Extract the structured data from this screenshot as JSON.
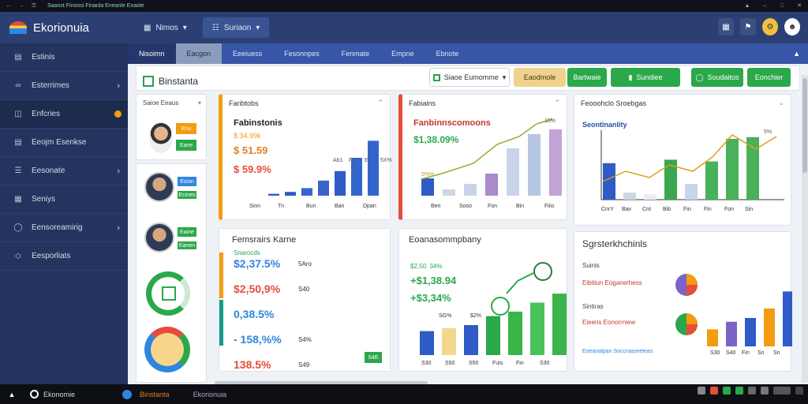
{
  "titlebar": {
    "caption": "Saanst Finonsi Finanla Eneanle Enaste"
  },
  "app": {
    "name": "Ekorionuia"
  },
  "header": {
    "btn1": "Nimos",
    "btn2": "Suriaon"
  },
  "sidebar": {
    "items": [
      {
        "label": "Estinis",
        "icon": "chart-icon"
      },
      {
        "label": "Esterrimes",
        "icon": "link-icon"
      },
      {
        "label": "Enfcries",
        "icon": "calendar-icon"
      },
      {
        "label": "Eeojm Esenkse",
        "icon": "book-icon"
      },
      {
        "label": "Eesonate",
        "icon": "list-icon"
      },
      {
        "label": "Seniys",
        "icon": "doc-icon"
      },
      {
        "label": "Eensoreamirig",
        "icon": "circle-icon"
      },
      {
        "label": "Eesporliats",
        "icon": "diamond-icon"
      }
    ]
  },
  "nav": {
    "tabs": [
      "Nisoimn",
      "Eacgon",
      "Eeeiuess",
      "Fesonnpes",
      "Fenmate",
      "Empne",
      "Ebnote"
    ]
  },
  "toolbar": {
    "title": "Binstanta",
    "select": "Siaoe Eumomme",
    "btns": [
      "Eaodmole",
      "Bartwaie",
      "Sundiee",
      "Soudaitos",
      "Eonchier"
    ]
  },
  "left": {
    "header": "Saioe Eeaus",
    "people": [
      "Esion",
      "Eaine",
      "Ecines",
      "Eanen"
    ],
    "badges": [
      "Enu",
      "Eane"
    ]
  },
  "card1": {
    "title": "Faribtobs",
    "heading": "Fabinstonis",
    "v1": "$ 34.99k",
    "v2": "$ 51.59",
    "v3": "$ 59.9%",
    "bars": [
      2,
      4,
      8,
      16,
      26,
      40,
      58
    ],
    "labels": [
      "Sinn",
      "Tn",
      "Bun",
      "Ban",
      "Dpan"
    ],
    "tick": [
      "Ab1",
      "F4",
      "Ent",
      "5X%"
    ]
  },
  "card2": {
    "title": "Fabiains",
    "heading": "Fanbinnscomoons",
    "value": "$1,38.09%",
    "v2": "5%%",
    "bars": [
      22,
      8,
      15,
      28,
      60,
      78,
      84
    ],
    "labels": [
      "Ben",
      "Soso",
      "Fon",
      "Bin",
      "Fiiis"
    ],
    "tick": "15%"
  },
  "card3": {
    "title": "Feooohclo Sroebgas",
    "heading": "Seontinanlity",
    "tick": "5%",
    "bars": [
      42,
      8,
      6,
      46,
      18,
      44,
      70,
      72
    ],
    "labels": [
      "CnrY",
      "Bav",
      "Cnt",
      "Bib",
      "Fin",
      "Fin",
      "Fon",
      "Sin"
    ]
  },
  "card4": {
    "title": "Femsrairs Karne",
    "rows": [
      {
        "pre": "Snarocds",
        "v": "$2,37.5%",
        "col": "#2e86de",
        "r": "5Aro"
      },
      {
        "pre": "",
        "v": "$2,50,9%",
        "col": "#e74c3c",
        "r": "S40"
      },
      {
        "pre": "",
        "v": "0,38.5%",
        "col": "#2e86de",
        "r": ""
      },
      {
        "pre": "",
        "v": "- 158,%%",
        "col": "#2e86de",
        "r": "S4%"
      },
      {
        "pre": "",
        "v": "138.5%",
        "col": "#e74c3c",
        "r": "S49"
      }
    ],
    "btn": "S4E"
  },
  "card5": {
    "title": "Eoanasommpbany",
    "v1": "+$1,38.94",
    "v2": "$2,50. 34%",
    "v3": "+$3,34%",
    "bars": [
      32,
      36,
      40,
      52,
      58,
      70,
      82
    ],
    "labels": [
      "S30",
      "S50",
      "S50",
      "Fuis",
      "Fin",
      "S30"
    ],
    "tags": [
      "SG%",
      "$2%"
    ]
  },
  "card6": {
    "title": "Sgrsterkhchinls",
    "sub1": "Suinis",
    "row1": "Eibitiun Eoganerhess",
    "sub2": "Sintiras",
    "row2": "Eieeris Eonorrniew",
    "row3": "Eoeanalpan Soccraaseeleas",
    "bars": [
      18,
      26,
      30,
      40,
      58,
      72
    ],
    "labels": [
      "S30",
      "S40",
      "Fin",
      "Sn",
      "Sn"
    ]
  }
}
